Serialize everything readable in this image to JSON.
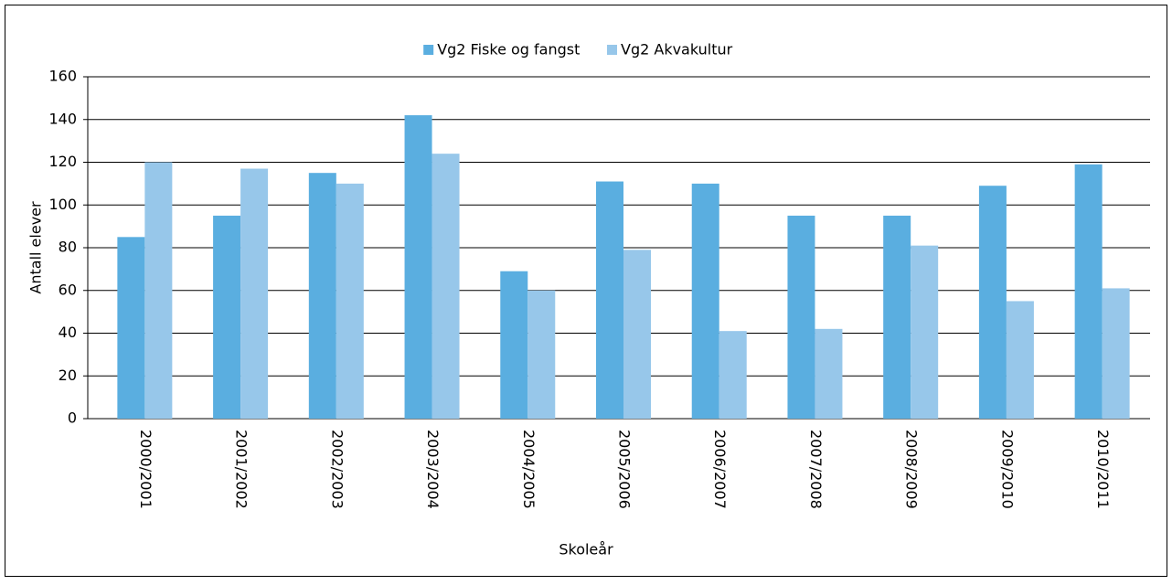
{
  "chart_data": {
    "type": "bar",
    "ylabel": "Antall elever",
    "xlabel": "Skoleår",
    "categories": [
      "2000/2001",
      "2001/2002",
      "2002/2003",
      "2003/2004",
      "2004/2005",
      "2005/2006",
      "2006/2007",
      "2007/2008",
      "2008/2009",
      "2009/2010",
      "2010/2011"
    ],
    "series": [
      {
        "name": "Vg2 Fiske og fangst",
        "color": "#5aaee0",
        "values": [
          85,
          95,
          115,
          142,
          69,
          111,
          110,
          95,
          95,
          109,
          119
        ]
      },
      {
        "name": "Vg2 Akvakultur",
        "color": "#97c7ea",
        "values": [
          120,
          117,
          110,
          124,
          60,
          79,
          41,
          42,
          81,
          55,
          61
        ]
      }
    ],
    "ylim": [
      0,
      160
    ],
    "yticks": [
      0,
      20,
      40,
      60,
      80,
      100,
      120,
      140,
      160
    ],
    "grid": true,
    "legend": "top"
  }
}
